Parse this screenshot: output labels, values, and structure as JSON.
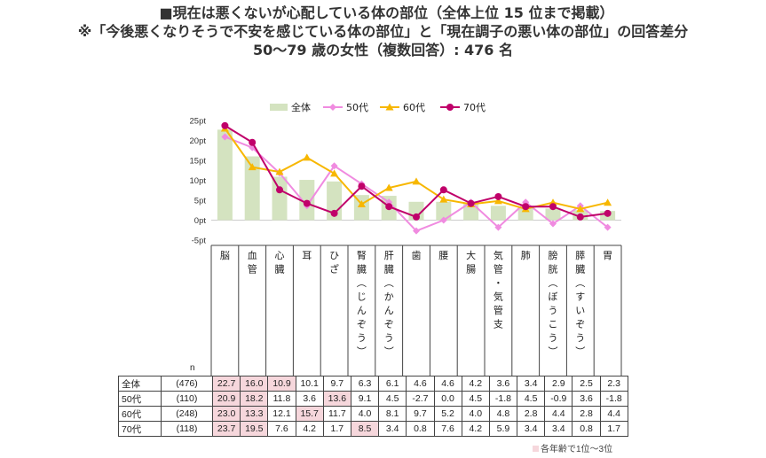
{
  "title_lines": [
    "■現在は悪くないが心配している体の部位（全体上位 15 位まで掲載）",
    "※「今後悪くなりそうで不安を感じている体の部位」と「現在調子の悪い体の部位」の回答差分",
    "50～79 歳の女性（複数回答）: 476 名"
  ],
  "chart_data": {
    "type": "bar",
    "title": "現在は悪くないが心配している体の部位（全体上位 15 位まで掲載）",
    "categories": [
      "脳",
      "血管",
      "心臓",
      "耳",
      "ひざ",
      "腎臓（じんぞう）",
      "肝臓（かんぞう）",
      "歯",
      "腰",
      "大腸",
      "気管・気管支",
      "肺",
      "膀胱（ぼうこう）",
      "膵臓（すいぞう）",
      "胃"
    ],
    "ylim": [
      -5,
      25
    ],
    "yticks": [
      "-5pt",
      "0pt",
      "5pt",
      "10pt",
      "15pt",
      "20pt",
      "25pt"
    ],
    "ytick_values": [
      -5,
      0,
      5,
      10,
      15,
      20,
      25
    ],
    "series": [
      {
        "name": "全体",
        "kind": "bar",
        "color": "#d4e3c0",
        "values": [
          22.7,
          16.0,
          10.9,
          10.1,
          9.7,
          6.3,
          6.1,
          4.6,
          4.6,
          4.2,
          3.6,
          3.4,
          2.9,
          2.5,
          2.3
        ]
      },
      {
        "name": "50代",
        "kind": "line",
        "marker": "diamond",
        "color": "#f08be0",
        "values": [
          20.9,
          18.2,
          11.8,
          3.6,
          13.6,
          9.1,
          4.5,
          -2.7,
          0.0,
          4.5,
          -1.8,
          4.5,
          -0.9,
          3.6,
          -1.8
        ]
      },
      {
        "name": "60代",
        "kind": "line",
        "marker": "triangle",
        "color": "#f7b700",
        "values": [
          23.0,
          13.3,
          12.1,
          15.7,
          11.7,
          4.0,
          8.1,
          9.7,
          5.2,
          4.0,
          4.8,
          2.8,
          4.4,
          2.8,
          4.4
        ]
      },
      {
        "name": "70代",
        "kind": "line",
        "marker": "circle",
        "color": "#c0006a",
        "values": [
          23.7,
          19.5,
          7.6,
          4.2,
          1.7,
          8.5,
          3.4,
          0.8,
          7.6,
          4.2,
          5.9,
          3.4,
          3.4,
          0.8,
          1.7
        ]
      }
    ]
  },
  "category_labels_vertical": [
    [
      "脳"
    ],
    [
      "血",
      "管"
    ],
    [
      "心",
      "臓"
    ],
    [
      "耳"
    ],
    [
      "ひ",
      "ざ"
    ],
    [
      "腎",
      "臓",
      "︵",
      "じ",
      "ん",
      "ぞ",
      "う",
      "︶"
    ],
    [
      "肝",
      "臓",
      "︵",
      "か",
      "ん",
      "ぞ",
      "う",
      "︶"
    ],
    [
      "歯"
    ],
    [
      "腰"
    ],
    [
      "大",
      "腸"
    ],
    [
      "気",
      "管",
      "・",
      "気",
      "管",
      "支"
    ],
    [
      "肺"
    ],
    [
      "膀",
      "胱",
      "︵",
      "ぼ",
      "う",
      "こ",
      "う",
      "︶"
    ],
    [
      "膵",
      "臓",
      "︵",
      "す",
      "い",
      "ぞ",
      "う",
      "︶"
    ],
    [
      "胃"
    ]
  ],
  "table": {
    "n_header": "n",
    "rows": [
      {
        "label": "全体",
        "n": "(476)",
        "values": [
          "22.7",
          "16.0",
          "10.9",
          "10.1",
          "9.7",
          "6.3",
          "6.1",
          "4.6",
          "4.6",
          "4.2",
          "3.6",
          "3.4",
          "2.9",
          "2.5",
          "2.3"
        ],
        "highlight": [
          0,
          1,
          2
        ]
      },
      {
        "label": "50代",
        "n": "(110)",
        "values": [
          "20.9",
          "18.2",
          "11.8",
          "3.6",
          "13.6",
          "9.1",
          "4.5",
          "-2.7",
          "0.0",
          "4.5",
          "-1.8",
          "4.5",
          "-0.9",
          "3.6",
          "-1.8"
        ],
        "highlight": [
          0,
          1,
          4
        ]
      },
      {
        "label": "60代",
        "n": "(248)",
        "values": [
          "23.0",
          "13.3",
          "12.1",
          "15.7",
          "11.7",
          "4.0",
          "8.1",
          "9.7",
          "5.2",
          "4.0",
          "4.8",
          "2.8",
          "4.4",
          "2.8",
          "4.4"
        ],
        "highlight": [
          0,
          1,
          3
        ]
      },
      {
        "label": "70代",
        "n": "(118)",
        "values": [
          "23.7",
          "19.5",
          "7.6",
          "4.2",
          "1.7",
          "8.5",
          "3.4",
          "0.8",
          "7.6",
          "4.2",
          "5.9",
          "3.4",
          "3.4",
          "0.8",
          "1.7"
        ],
        "highlight": [
          0,
          1,
          5
        ]
      }
    ]
  },
  "footnote": "各年齢で1位～3位"
}
